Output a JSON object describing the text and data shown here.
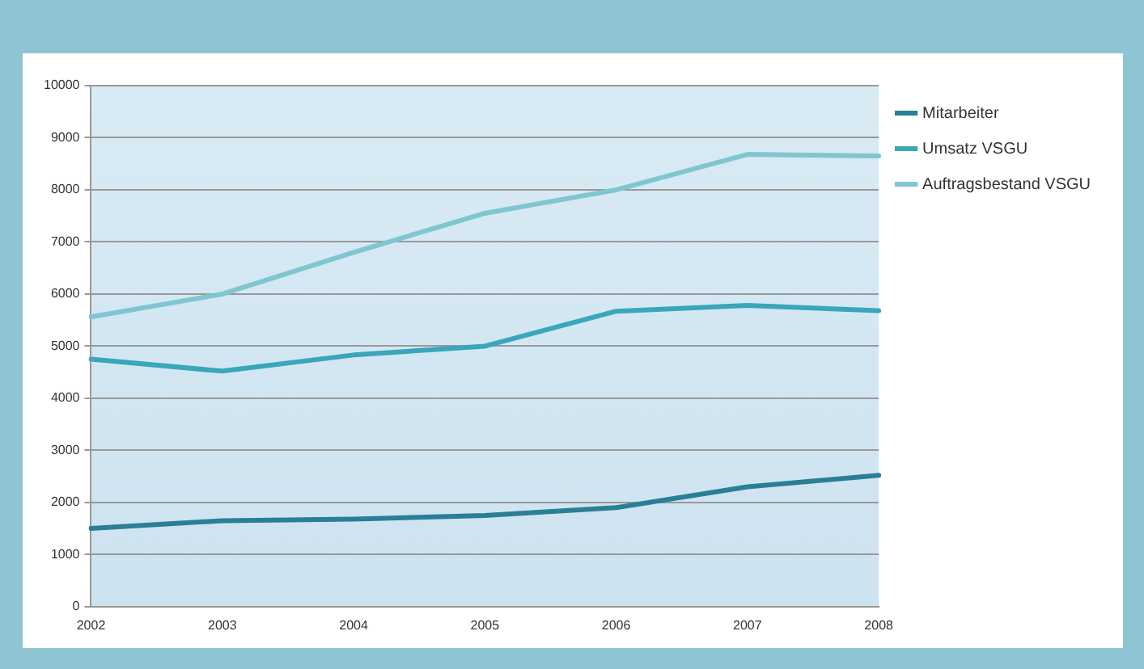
{
  "chart_data": {
    "type": "line",
    "categories": [
      "2002",
      "2003",
      "2004",
      "2005",
      "2006",
      "2007",
      "2008"
    ],
    "series": [
      {
        "name": "Mitarbeiter",
        "color": "#2a7f96",
        "values": [
          1500,
          1650,
          1680,
          1750,
          1900,
          2300,
          2520
        ]
      },
      {
        "name": "Umsatz VSGU",
        "color": "#3aa6bb",
        "values": [
          4750,
          4520,
          4830,
          5000,
          5670,
          5780,
          5680
        ]
      },
      {
        "name": "Auftragsbestand VSGU",
        "color": "#80c6d2",
        "values": [
          5560,
          6000,
          6800,
          7550,
          8000,
          8680,
          8650
        ]
      }
    ],
    "ylim": [
      0,
      10000
    ],
    "yticks": [
      0,
      1000,
      2000,
      3000,
      4000,
      5000,
      6000,
      7000,
      8000,
      9000,
      10000
    ],
    "grid": "y",
    "legend": "top right",
    "marker": "none",
    "line_style": "solid"
  }
}
